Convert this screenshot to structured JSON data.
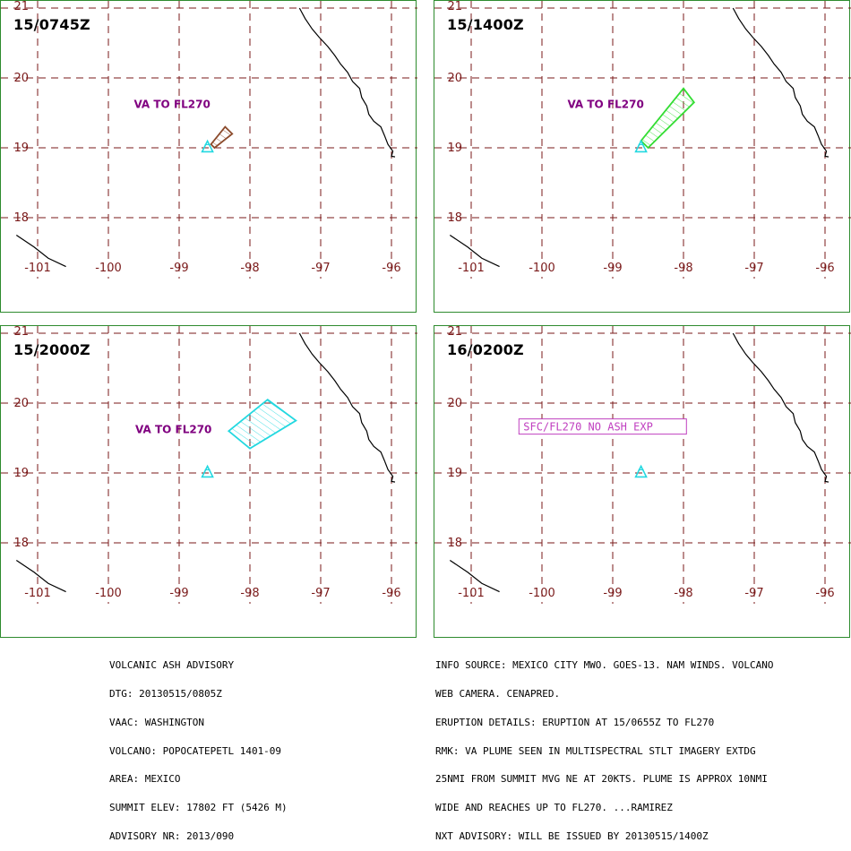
{
  "panels": [
    {
      "title": "15/0745Z",
      "label": "VA TO FL270",
      "label_style": "plain",
      "plume_color": "#8b4a2b",
      "plume": [
        [
          -98.55,
          19.05
        ],
        [
          -98.35,
          19.3
        ],
        [
          -98.25,
          19.2
        ],
        [
          -98.5,
          19.0
        ]
      ]
    },
    {
      "title": "15/1400Z",
      "label": "VA TO FL270",
      "label_style": "plain",
      "plume_color": "#33dd33",
      "plume": [
        [
          -98.6,
          19.1
        ],
        [
          -98.0,
          19.85
        ],
        [
          -97.85,
          19.65
        ],
        [
          -98.5,
          19.0
        ]
      ]
    },
    {
      "title": "15/2000Z",
      "label": "VA TO FL270",
      "label_style": "plain",
      "plume_color": "#22d8e0",
      "plume": [
        [
          -98.3,
          19.6
        ],
        [
          -97.75,
          20.05
        ],
        [
          -97.35,
          19.75
        ],
        [
          -98.0,
          19.35
        ]
      ]
    },
    {
      "title": "16/0200Z",
      "label": "SFC/FL270 NO ASH EXP",
      "label_style": "boxed",
      "plume_color": "#22d8e0",
      "plume": []
    }
  ],
  "map": {
    "lon_ticks": [
      "-101",
      "-100",
      "-99",
      "-98",
      "-97",
      "-96"
    ],
    "lat_ticks": [
      "21",
      "20",
      "19",
      "18"
    ],
    "volcano": [
      -98.6,
      19.02
    ],
    "colors": {
      "grid": "#7a1a1a",
      "coast": "#000000",
      "label": "#800080",
      "box": "#c040c0",
      "volcano": "#22d8e0",
      "frame": "#2e8b2e"
    }
  },
  "advisory_left": [
    "VOLCANIC ASH ADVISORY",
    "DTG: 20130515/0805Z",
    "VAAC: WASHINGTON",
    "VOLCANO: POPOCATEPETL 1401-09",
    "AREA: MEXICO",
    "SUMMIT ELEV: 17802 FT (5426 M)",
    "ADVISORY NR: 2013/090"
  ],
  "advisory_right": [
    "INFO SOURCE: MEXICO CITY MWO. GOES-13. NAM WINDS. VOLCANO",
    "WEB CAMERA. CENAPRED.",
    "ERUPTION DETAILS: ERUPTION AT 15/0655Z TO FL270",
    "RMK: VA PLUME SEEN IN MULTISPECTRAL STLT IMAGERY EXTDG",
    "25NMI FROM SUMMIT MVG NE AT 20KTS. PLUME IS APPROX 10NMI",
    "WIDE AND REACHES UP TO FL270. ...RAMIREZ",
    "NXT ADVISORY: WILL BE ISSUED BY 20130515/1400Z"
  ]
}
